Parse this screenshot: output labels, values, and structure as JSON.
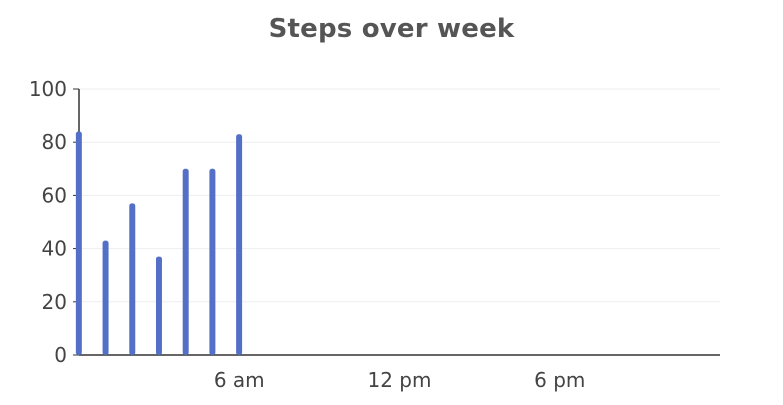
{
  "chart_data": {
    "type": "bar",
    "title": "Steps over week",
    "xlabel": "",
    "ylabel": "",
    "ylim": [
      0,
      100
    ],
    "yticks": [
      0,
      20,
      40,
      60,
      80,
      100
    ],
    "x_range_hours": [
      0,
      24
    ],
    "xticks": [
      {
        "label": "6 am",
        "hour": 6
      },
      {
        "label": "12 pm",
        "hour": 12
      },
      {
        "label": "6 pm",
        "hour": 18
      }
    ],
    "grid": true,
    "colors": {
      "bar": "#5470c6",
      "grid": "#eeeeee",
      "axis": "#333333"
    },
    "bars": [
      {
        "hour": 0.5,
        "value": 84
      },
      {
        "hour": 1.5,
        "value": 43
      },
      {
        "hour": 2.5,
        "value": 57
      },
      {
        "hour": 3.5,
        "value": 37
      },
      {
        "hour": 4.5,
        "value": 70
      },
      {
        "hour": 5.5,
        "value": 70
      },
      {
        "hour": 6.5,
        "value": 83
      }
    ]
  }
}
